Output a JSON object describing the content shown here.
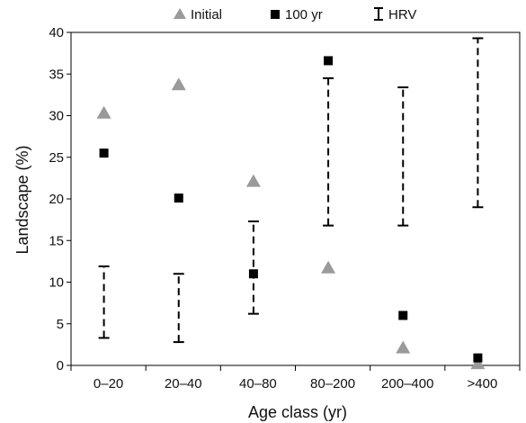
{
  "chart_data": {
    "type": "scatter",
    "xlabel": "Age class (yr)",
    "ylabel": "Landscape (%)",
    "ylim": [
      0,
      40
    ],
    "yticks": [
      0,
      5,
      10,
      15,
      20,
      25,
      30,
      35,
      40
    ],
    "grid": false,
    "legend_position": "top",
    "categories": [
      "0–20",
      "20–40",
      "40–80",
      "80–200",
      "200–400",
      ">400"
    ],
    "series": [
      {
        "name": "Initial",
        "marker": "triangle",
        "color": "#9a9a9a",
        "values": [
          30.3,
          33.7,
          22.1,
          11.7,
          2.1,
          0.2
        ]
      },
      {
        "name": "100 yr",
        "marker": "square",
        "color": "#000000",
        "values": [
          25.5,
          20.1,
          11.0,
          36.6,
          6.0,
          0.9
        ]
      }
    ],
    "ranges": {
      "name": "HRV",
      "low": [
        3.3,
        2.8,
        6.2,
        16.8,
        16.8,
        19.0
      ],
      "high": [
        11.9,
        11.0,
        17.3,
        34.5,
        33.4,
        39.3
      ]
    }
  }
}
